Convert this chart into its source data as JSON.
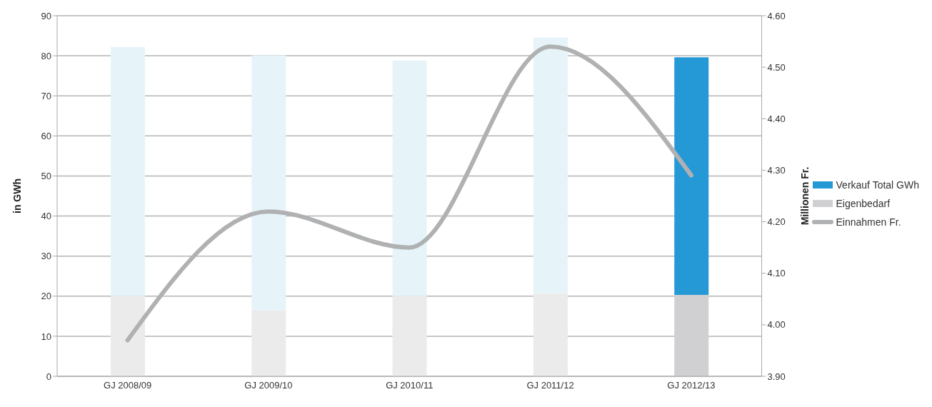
{
  "chart_data": {
    "type": "bar",
    "stacked": true,
    "categories": [
      "GJ 2008/09",
      "GJ 2009/10",
      "GJ 2010/11",
      "GJ 2011/12",
      "GJ 2012/13"
    ],
    "series": [
      {
        "name": "Eigenbedarf",
        "color": "#d0d0d2",
        "colors": [
          "#ebebeb",
          "#ebebeb",
          "#ebebeb",
          "#ebebeb",
          "#d0d0d2"
        ],
        "values": [
          20.0,
          16.5,
          20.0,
          20.7,
          20.3
        ]
      },
      {
        "name": "Verkauf Total GWh",
        "color": "#2499d6",
        "colors": [
          "#e6f4f9",
          "#e6f4f9",
          "#e6f4f9",
          "#e6f4f9",
          "#2499d6"
        ],
        "values": [
          62.2,
          63.6,
          58.8,
          63.8,
          59.3
        ]
      },
      {
        "name": "Einnahmen Fr.",
        "type": "line",
        "axis": "y2",
        "color": "#b0b1b3",
        "values": [
          3.97,
          4.22,
          4.15,
          4.54,
          4.29
        ]
      }
    ],
    "ylabel": "in GWh",
    "y2label": "Millionen Fr.",
    "ylim": [
      0,
      90
    ],
    "yticks": [
      0,
      10,
      20,
      30,
      40,
      50,
      60,
      70,
      80,
      90
    ],
    "y2lim": [
      3.9,
      4.6
    ],
    "y2ticks": [
      {
        "value": 3.9,
        "label": "3.90"
      },
      {
        "value": 4.0,
        "label": "4.00"
      },
      {
        "value": 4.1,
        "label": "4.10"
      },
      {
        "value": 4.2,
        "label": "4.20"
      },
      {
        "value": 4.3,
        "label": "4.30"
      },
      {
        "value": 4.4,
        "label": "4.40"
      },
      {
        "value": 4.5,
        "label": "4.50"
      },
      {
        "value": 4.6,
        "label": "4.60"
      }
    ],
    "grid": "y",
    "legend": "right",
    "marker": "none",
    "line_style": "solid"
  }
}
